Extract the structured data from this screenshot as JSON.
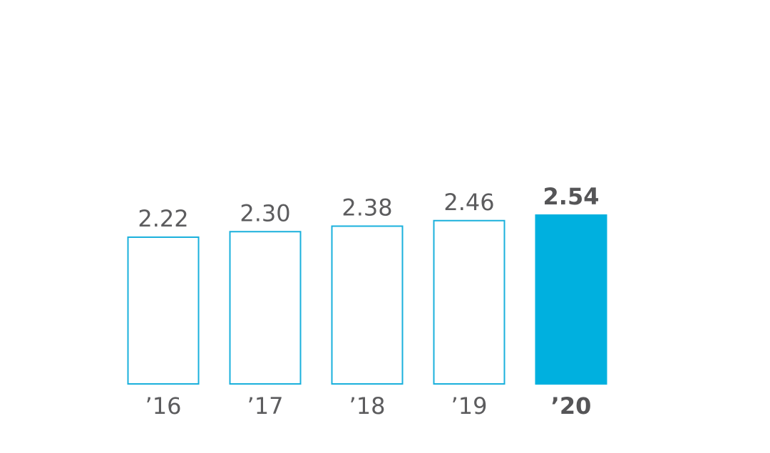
{
  "chart_data": {
    "type": "bar",
    "categories": [
      "’16",
      "’17",
      "’18",
      "’19",
      "’20"
    ],
    "values": [
      2.22,
      2.3,
      2.38,
      2.46,
      2.54
    ],
    "value_labels": [
      "2.22",
      "2.30",
      "2.38",
      "2.46",
      "2.54"
    ],
    "highlight_index": 4,
    "title": "",
    "xlabel": "",
    "ylabel": "",
    "grid": false,
    "legend": "none",
    "colors": {
      "accent": "#00b0df",
      "outline": "#1ab0dc",
      "text": "#5c5c5e"
    }
  }
}
